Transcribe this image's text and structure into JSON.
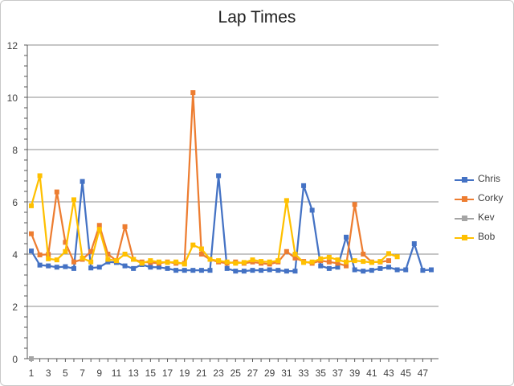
{
  "chart_data": {
    "type": "line",
    "title": "Lap Times",
    "xlabel": "",
    "ylabel": "",
    "ylim": [
      0,
      12
    ],
    "yticks": [
      0,
      2,
      4,
      6,
      8,
      10,
      12
    ],
    "xlim": [
      1,
      48
    ],
    "xtick_labels": [
      1,
      3,
      5,
      7,
      9,
      11,
      13,
      15,
      17,
      19,
      21,
      23,
      25,
      27,
      29,
      31,
      33,
      35,
      37,
      39,
      41,
      43,
      45,
      47
    ],
    "grid": true,
    "legend_position": "right",
    "series": [
      {
        "name": "Chris",
        "color": "#4472C4",
        "x": [
          1,
          2,
          3,
          4,
          5,
          6,
          7,
          8,
          9,
          10,
          11,
          12,
          13,
          14,
          15,
          16,
          17,
          18,
          19,
          20,
          21,
          22,
          23,
          24,
          25,
          26,
          27,
          28,
          29,
          30,
          31,
          32,
          33,
          34,
          35,
          36,
          37,
          38,
          39,
          40,
          41,
          42,
          43,
          44,
          45,
          46,
          47,
          48
        ],
        "values": [
          4.12,
          3.58,
          3.55,
          3.5,
          3.52,
          3.45,
          6.78,
          3.47,
          3.5,
          3.7,
          3.68,
          3.55,
          3.45,
          3.6,
          3.5,
          3.5,
          3.45,
          3.38,
          3.38,
          3.38,
          3.38,
          3.38,
          7.0,
          3.45,
          3.35,
          3.35,
          3.38,
          3.38,
          3.4,
          3.38,
          3.35,
          3.35,
          6.62,
          5.68,
          3.55,
          3.45,
          3.5,
          4.65,
          3.4,
          3.35,
          3.38,
          3.45,
          3.5,
          3.4,
          3.4,
          4.4,
          3.38,
          3.4
        ]
      },
      {
        "name": "Corky",
        "color": "#ED7D31",
        "x": [
          1,
          2,
          3,
          4,
          5,
          6,
          7,
          8,
          9,
          10,
          11,
          12,
          13,
          14,
          15,
          16,
          17,
          18,
          19,
          20,
          21,
          22,
          23,
          24,
          25,
          26,
          27,
          28,
          29,
          30,
          31,
          32,
          33,
          34,
          35,
          36,
          37,
          38,
          39,
          40,
          41,
          42,
          43
        ],
        "values": [
          4.78,
          3.97,
          3.99,
          6.38,
          4.45,
          3.7,
          3.8,
          4.1,
          5.1,
          4.0,
          3.75,
          5.05,
          3.8,
          3.7,
          3.68,
          3.65,
          3.7,
          3.65,
          3.65,
          10.18,
          4.0,
          3.8,
          3.7,
          3.65,
          3.7,
          3.65,
          3.7,
          3.65,
          3.62,
          3.7,
          4.1,
          3.85,
          3.72,
          3.65,
          3.75,
          3.7,
          3.65,
          3.55,
          5.9,
          4.0,
          3.7,
          3.7,
          3.75
        ]
      },
      {
        "name": "Kev",
        "color": "#A5A5A5",
        "x": [
          1
        ],
        "values": [
          0
        ]
      },
      {
        "name": "Bob",
        "color": "#FFC000",
        "x": [
          1,
          2,
          3,
          4,
          5,
          6,
          7,
          8,
          9,
          10,
          11,
          12,
          13,
          14,
          15,
          16,
          17,
          18,
          19,
          20,
          21,
          22,
          23,
          24,
          25,
          26,
          27,
          28,
          29,
          30,
          31,
          32,
          33,
          34,
          35,
          36,
          37,
          38,
          39,
          40,
          41,
          42,
          43,
          44
        ],
        "values": [
          5.85,
          7.0,
          3.82,
          3.78,
          4.1,
          6.08,
          3.85,
          3.7,
          4.95,
          3.8,
          3.75,
          4.0,
          3.8,
          3.65,
          3.75,
          3.7,
          3.68,
          3.7,
          3.62,
          4.35,
          4.2,
          3.8,
          3.75,
          3.7,
          3.65,
          3.68,
          3.78,
          3.72,
          3.7,
          3.75,
          6.05,
          4.0,
          3.68,
          3.7,
          3.82,
          3.88,
          3.78,
          3.7,
          3.75,
          3.72,
          3.68,
          3.72,
          4.02,
          3.9
        ]
      }
    ]
  }
}
